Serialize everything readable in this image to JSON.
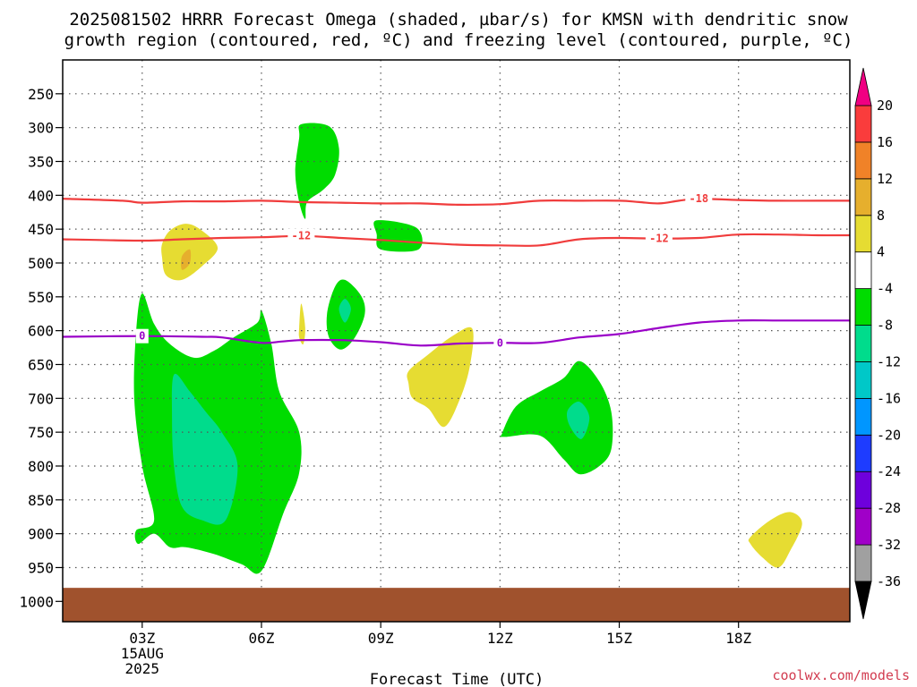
{
  "title_lines": [
    "2025081502 HRRR Forecast Omega (shaded, µbar/s) for KMSN with dendritic snow",
    "growth region (contoured, red, ºC) and freezing level (contoured, purple, ºC)"
  ],
  "credit": "coolwx.com/models",
  "chart_data": {
    "type": "heatmap",
    "xlabel": "Forecast Time (UTC)",
    "x_range_hours": [
      1.0,
      20.8
    ],
    "x_ticks": [
      {
        "hour": 3,
        "label": "03Z",
        "sub": [
          "15AUG",
          "2025"
        ]
      },
      {
        "hour": 6,
        "label": "06Z"
      },
      {
        "hour": 9,
        "label": "09Z"
      },
      {
        "hour": 12,
        "label": "12Z"
      },
      {
        "hour": 15,
        "label": "15Z"
      },
      {
        "hour": 18,
        "label": "18Z"
      }
    ],
    "y_ticks": [
      250,
      300,
      350,
      400,
      450,
      500,
      550,
      600,
      650,
      700,
      750,
      800,
      850,
      900,
      950,
      1000
    ],
    "y_range": [
      200,
      1030
    ],
    "grid": true,
    "colorbar": {
      "levels": [
        -36,
        -32,
        -28,
        -24,
        -20,
        -16,
        -12,
        -8,
        -4,
        4,
        8,
        12,
        16,
        20
      ],
      "colors": [
        "#000000",
        "#a0a0a0",
        "#a000c8",
        "#6e00dc",
        "#1e3cff",
        "#0096ff",
        "#00c8c8",
        "#00dc8c",
        "#00dc00",
        "#ffffff",
        "#e6dc32",
        "#e6af2d",
        "#f08228",
        "#fa3c3c",
        "#f00082"
      ]
    },
    "fills": [
      {
        "value": -6,
        "color": "#00dc00",
        "points": [
          [
            7.0,
            295
          ],
          [
            7.7,
            298
          ],
          [
            7.95,
            330
          ],
          [
            7.85,
            370
          ],
          [
            7.55,
            392
          ],
          [
            7.15,
            410
          ],
          [
            7.1,
            435
          ],
          [
            6.95,
            410
          ],
          [
            6.85,
            365
          ],
          [
            6.95,
            315
          ]
        ]
      },
      {
        "value": 6,
        "color": "#e6dc32",
        "points": [
          [
            3.5,
            472
          ],
          [
            3.7,
            452
          ],
          [
            4.1,
            442
          ],
          [
            4.5,
            452
          ],
          [
            4.9,
            478
          ],
          [
            4.5,
            505
          ],
          [
            4.0,
            525
          ],
          [
            3.6,
            518
          ],
          [
            3.5,
            492
          ]
        ]
      },
      {
        "value": 10,
        "color": "#e6af2d",
        "points": [
          [
            4.0,
            490
          ],
          [
            4.2,
            480
          ],
          [
            4.2,
            500
          ],
          [
            4.0,
            510
          ]
        ]
      },
      {
        "value": -6,
        "color": "#00dc00",
        "points": [
          [
            8.9,
            437
          ],
          [
            9.9,
            448
          ],
          [
            9.95,
            480
          ],
          [
            9.0,
            480
          ],
          [
            8.9,
            458
          ]
        ]
      },
      {
        "value": -6,
        "color": "#00dc00",
        "points": [
          [
            7.65,
            575
          ],
          [
            7.85,
            535
          ],
          [
            8.1,
            525
          ],
          [
            8.5,
            548
          ],
          [
            8.6,
            575
          ],
          [
            8.35,
            610
          ],
          [
            8.0,
            628
          ],
          [
            7.7,
            610
          ]
        ]
      },
      {
        "value": -10,
        "color": "#00dc8c",
        "points": [
          [
            7.95,
            568
          ],
          [
            8.1,
            553
          ],
          [
            8.25,
            568
          ],
          [
            8.1,
            588
          ]
        ]
      },
      {
        "value": 6,
        "color": "#e6dc32",
        "points": [
          [
            6.95,
            595
          ],
          [
            7.0,
            560
          ],
          [
            7.1,
            595
          ],
          [
            7.05,
            620
          ],
          [
            6.95,
            610
          ]
        ]
      },
      {
        "value": 6,
        "color": "#e6dc32",
        "points": [
          [
            9.7,
            660
          ],
          [
            10.2,
            635
          ],
          [
            10.8,
            608
          ],
          [
            11.3,
            597
          ],
          [
            11.25,
            650
          ],
          [
            11.0,
            700
          ],
          [
            10.6,
            742
          ],
          [
            10.2,
            715
          ],
          [
            9.8,
            700
          ],
          [
            9.7,
            678
          ]
        ]
      },
      {
        "value": -6,
        "color": "#00dc00",
        "points": [
          [
            3.0,
            545
          ],
          [
            3.3,
            590
          ],
          [
            3.7,
            620
          ],
          [
            4.3,
            640
          ],
          [
            4.8,
            630
          ],
          [
            5.3,
            610
          ],
          [
            5.9,
            588
          ],
          [
            6.0,
            570
          ],
          [
            6.25,
            620
          ],
          [
            6.45,
            690
          ],
          [
            6.95,
            750
          ],
          [
            6.95,
            810
          ],
          [
            6.55,
            870
          ],
          [
            6.0,
            955
          ],
          [
            5.5,
            945
          ],
          [
            4.8,
            930
          ],
          [
            4.1,
            920
          ],
          [
            3.7,
            920
          ],
          [
            3.3,
            900
          ],
          [
            2.9,
            915
          ],
          [
            2.85,
            895
          ],
          [
            3.3,
            880
          ],
          [
            3.0,
            800
          ],
          [
            2.8,
            700
          ],
          [
            2.85,
            600
          ]
        ]
      },
      {
        "value": -10,
        "color": "#00dc8c",
        "points": [
          [
            3.8,
            665
          ],
          [
            4.2,
            690
          ],
          [
            4.6,
            720
          ],
          [
            5.0,
            750
          ],
          [
            5.4,
            800
          ],
          [
            5.1,
            880
          ],
          [
            4.5,
            880
          ],
          [
            4.0,
            860
          ],
          [
            3.8,
            800
          ],
          [
            3.75,
            730
          ]
        ]
      },
      {
        "value": -6,
        "color": "#00dc00",
        "points": [
          [
            12.05,
            752
          ],
          [
            12.4,
            712
          ],
          [
            13.0,
            690
          ],
          [
            13.6,
            670
          ],
          [
            14.0,
            645
          ],
          [
            14.5,
            675
          ],
          [
            14.8,
            720
          ],
          [
            14.8,
            775
          ],
          [
            14.5,
            800
          ],
          [
            14.0,
            812
          ],
          [
            13.6,
            790
          ],
          [
            13.0,
            755
          ],
          [
            12.1,
            757
          ]
        ]
      },
      {
        "value": -10,
        "color": "#00dc8c",
        "points": [
          [
            13.7,
            718
          ],
          [
            14.0,
            705
          ],
          [
            14.25,
            728
          ],
          [
            14.05,
            760
          ],
          [
            13.75,
            740
          ]
        ]
      },
      {
        "value": 6,
        "color": "#e6dc32",
        "points": [
          [
            18.3,
            905
          ],
          [
            18.8,
            880
          ],
          [
            19.3,
            868
          ],
          [
            19.6,
            885
          ],
          [
            19.3,
            925
          ],
          [
            19.0,
            950
          ],
          [
            18.6,
            935
          ],
          [
            18.3,
            915
          ]
        ]
      }
    ],
    "ground_pressure": 980,
    "ground_color": "#a0522d",
    "contours": [
      {
        "color": "#f03c3c",
        "label": "-18",
        "label_hour": 17.0,
        "points": [
          [
            1.0,
            405
          ],
          [
            2.5,
            408
          ],
          [
            3.0,
            411
          ],
          [
            4.0,
            409
          ],
          [
            5.0,
            409
          ],
          [
            6.0,
            408
          ],
          [
            7.0,
            410
          ],
          [
            8.0,
            411
          ],
          [
            9.0,
            412
          ],
          [
            10.0,
            412
          ],
          [
            11.0,
            414
          ],
          [
            12.0,
            413
          ],
          [
            13.0,
            408
          ],
          [
            14.0,
            408
          ],
          [
            15.0,
            408
          ],
          [
            15.5,
            410
          ],
          [
            16.0,
            412
          ],
          [
            16.5,
            408
          ],
          [
            17.0,
            405
          ],
          [
            18.0,
            407
          ],
          [
            19.0,
            408
          ],
          [
            20.0,
            408
          ],
          [
            20.8,
            408
          ]
        ]
      },
      {
        "color": "#f03c3c",
        "label": "-12",
        "label_hour": 7.0,
        "label2": "-12",
        "label2_hour": 16.0,
        "points": [
          [
            1.0,
            465
          ],
          [
            3.0,
            467
          ],
          [
            4.0,
            465
          ],
          [
            5.0,
            463
          ],
          [
            6.0,
            462
          ],
          [
            7.0,
            460
          ],
          [
            8.0,
            463
          ],
          [
            9.0,
            466
          ],
          [
            10.0,
            470
          ],
          [
            11.0,
            473
          ],
          [
            12.0,
            474
          ],
          [
            13.0,
            474
          ],
          [
            14.0,
            465
          ],
          [
            15.0,
            463
          ],
          [
            16.0,
            464
          ],
          [
            17.0,
            463
          ],
          [
            18.0,
            458
          ],
          [
            19.0,
            458
          ],
          [
            20.0,
            459
          ],
          [
            20.8,
            459
          ]
        ]
      },
      {
        "color": "#9a00c8",
        "label": "0",
        "label_hour": 3.0,
        "label2": "0",
        "label2_hour": 12.0,
        "points": [
          [
            1.0,
            609
          ],
          [
            3.0,
            608
          ],
          [
            4.5,
            609
          ],
          [
            5.0,
            610
          ],
          [
            6.0,
            618
          ],
          [
            6.5,
            616
          ],
          [
            7.0,
            614
          ],
          [
            8.0,
            614
          ],
          [
            9.0,
            617
          ],
          [
            10.0,
            622
          ],
          [
            11.0,
            619
          ],
          [
            12.0,
            618
          ],
          [
            13.0,
            618
          ],
          [
            14.0,
            610
          ],
          [
            15.0,
            605
          ],
          [
            16.0,
            596
          ],
          [
            17.0,
            588
          ],
          [
            18.0,
            585
          ],
          [
            19.0,
            585
          ],
          [
            20.0,
            585
          ],
          [
            20.8,
            585
          ]
        ]
      }
    ]
  }
}
